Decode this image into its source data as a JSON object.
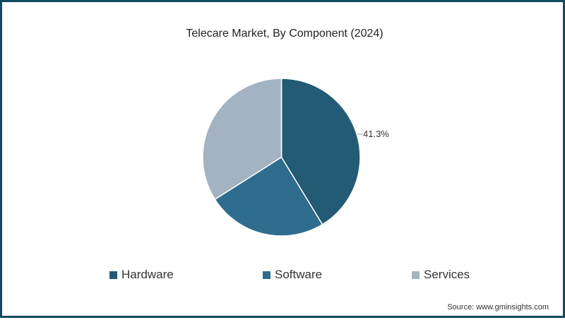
{
  "chart_data": {
    "type": "pie",
    "title": "Telecare Market, By Component (2024)",
    "categories": [
      "Hardware",
      "Software",
      "Services"
    ],
    "values": [
      41.3,
      24.7,
      34.0
    ],
    "colors": [
      "#235a74",
      "#2f6d8f",
      "#a3b3c1"
    ],
    "data_labels": [
      {
        "category": "Hardware",
        "label": "41.3%"
      }
    ],
    "legend_position": "bottom",
    "start_angle": "12 o'clock, clockwise"
  },
  "title": "Telecare Market, By Component (2024)",
  "label_hardware": "41.3%",
  "legend": [
    {
      "label": "Hardware",
      "color": "#235a74"
    },
    {
      "label": "Software",
      "color": "#2f6d8f"
    },
    {
      "label": "Services",
      "color": "#a3b3c1"
    }
  ],
  "source": "Source: www.gminsights.com",
  "border_color": "#114a5f"
}
